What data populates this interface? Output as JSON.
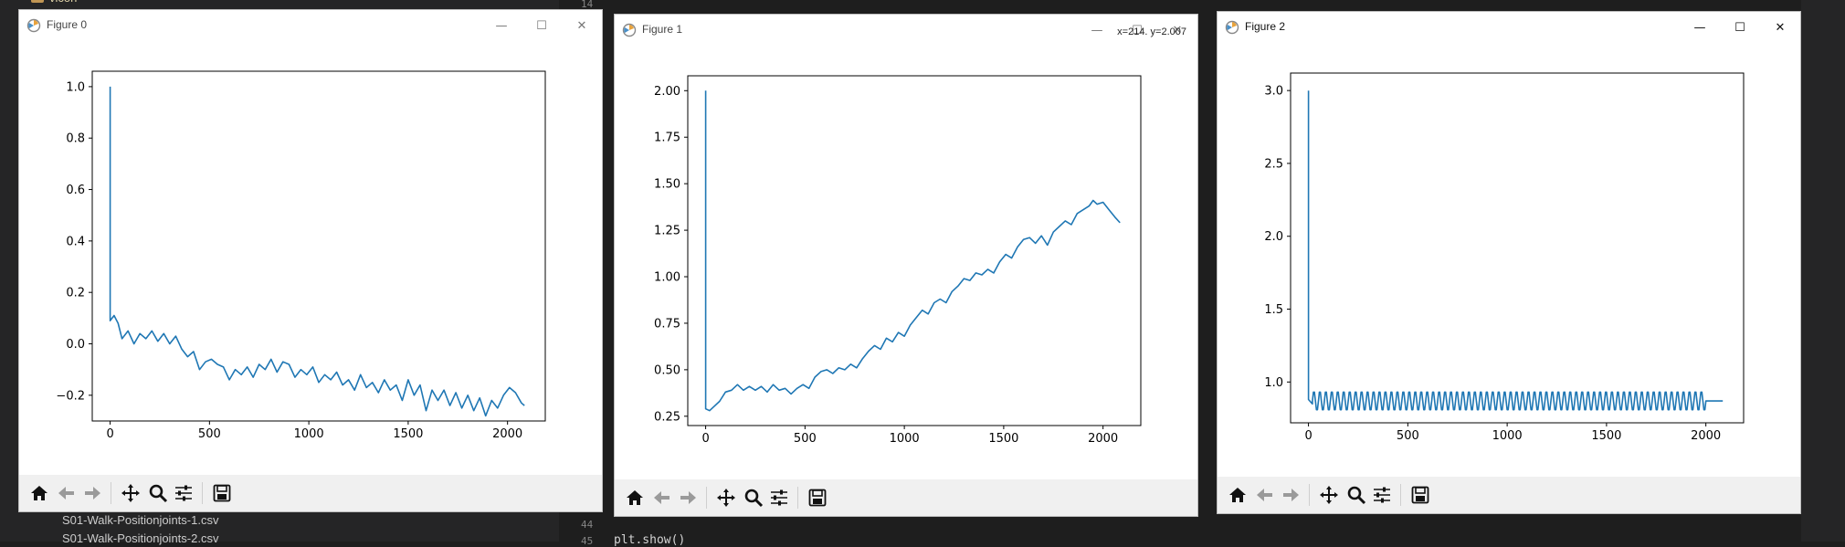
{
  "background": {
    "folder_label": "vicon",
    "line_numbers_top": "14",
    "line_numbers_bottom": [
      "44",
      "45"
    ],
    "files": [
      "S01-Walk-Positionjoints-1.csv",
      "S01-Walk-Positionjoints-2.csv"
    ],
    "code_line": "plt.show()"
  },
  "windows": [
    {
      "title": "Figure 0",
      "active": false,
      "coordinates": "",
      "chart_data": {
        "type": "line",
        "xlim": [
          -90,
          2190
        ],
        "ylim": [
          -0.3,
          1.06
        ],
        "xticks": [
          0,
          500,
          1000,
          1500,
          2000
        ],
        "yticks": [
          -0.2,
          0.0,
          0.2,
          0.4,
          0.6,
          0.8,
          1.0
        ],
        "ytick_labels": [
          "−0.2",
          "0.0",
          "0.2",
          "0.4",
          "0.6",
          "0.8",
          "1.0"
        ],
        "color": "#1f77b4",
        "series": [
          {
            "x": [
              0,
              0,
              20,
              40,
              60,
              90,
              120,
              150,
              180,
              210,
              240,
              270,
              300,
              330,
              360,
              390,
              420,
              450,
              480,
              510,
              540,
              570,
              600,
              630,
              660,
              690,
              720,
              750,
              780,
              810,
              840,
              870,
              900,
              930,
              960,
              990,
              1020,
              1050,
              1080,
              1110,
              1140,
              1170,
              1200,
              1230,
              1260,
              1290,
              1320,
              1350,
              1380,
              1410,
              1440,
              1470,
              1500,
              1530,
              1560,
              1590,
              1620,
              1650,
              1680,
              1710,
              1740,
              1770,
              1800,
              1830,
              1860,
              1890,
              1920,
              1950,
              1980,
              2010,
              2040,
              2070,
              2085
            ],
            "y": [
              1.0,
              0.09,
              0.11,
              0.08,
              0.02,
              0.05,
              0.0,
              0.04,
              0.02,
              0.05,
              0.01,
              0.04,
              0.0,
              0.03,
              -0.02,
              -0.05,
              -0.03,
              -0.1,
              -0.07,
              -0.06,
              -0.08,
              -0.09,
              -0.14,
              -0.1,
              -0.12,
              -0.09,
              -0.13,
              -0.08,
              -0.1,
              -0.06,
              -0.11,
              -0.07,
              -0.08,
              -0.13,
              -0.1,
              -0.12,
              -0.09,
              -0.15,
              -0.12,
              -0.14,
              -0.11,
              -0.16,
              -0.14,
              -0.18,
              -0.12,
              -0.17,
              -0.15,
              -0.19,
              -0.14,
              -0.18,
              -0.16,
              -0.22,
              -0.14,
              -0.2,
              -0.16,
              -0.26,
              -0.18,
              -0.22,
              -0.18,
              -0.24,
              -0.19,
              -0.25,
              -0.2,
              -0.26,
              -0.21,
              -0.28,
              -0.22,
              -0.25,
              -0.2,
              -0.17,
              -0.19,
              -0.23,
              -0.24
            ]
          }
        ]
      }
    },
    {
      "title": "Figure 1",
      "active": false,
      "coordinates": "x=214. y=2.007",
      "chart_data": {
        "type": "line",
        "xlim": [
          -90,
          2190
        ],
        "ylim": [
          0.2,
          2.08
        ],
        "xticks": [
          0,
          500,
          1000,
          1500,
          2000
        ],
        "yticks": [
          0.25,
          0.5,
          0.75,
          1.0,
          1.25,
          1.5,
          1.75,
          2.0
        ],
        "ytick_labels": [
          "0.25",
          "0.50",
          "0.75",
          "1.00",
          "1.25",
          "1.50",
          "1.75",
          "2.00"
        ],
        "color": "#1f77b4",
        "series": [
          {
            "x": [
              0,
              0,
              20,
              40,
              70,
              100,
              130,
              160,
              190,
              220,
              250,
              280,
              310,
              340,
              370,
              400,
              430,
              460,
              490,
              520,
              550,
              580,
              610,
              640,
              670,
              700,
              730,
              760,
              790,
              820,
              850,
              880,
              910,
              940,
              970,
              1000,
              1030,
              1060,
              1090,
              1120,
              1150,
              1180,
              1210,
              1240,
              1270,
              1300,
              1330,
              1360,
              1390,
              1420,
              1450,
              1480,
              1510,
              1540,
              1570,
              1600,
              1630,
              1660,
              1690,
              1720,
              1750,
              1780,
              1810,
              1840,
              1870,
              1900,
              1930,
              1950,
              1970,
              2000,
              2030,
              2060,
              2085
            ],
            "y": [
              2.0,
              0.29,
              0.28,
              0.3,
              0.33,
              0.38,
              0.39,
              0.42,
              0.39,
              0.41,
              0.39,
              0.41,
              0.38,
              0.42,
              0.39,
              0.4,
              0.37,
              0.4,
              0.42,
              0.4,
              0.46,
              0.49,
              0.5,
              0.48,
              0.51,
              0.5,
              0.53,
              0.51,
              0.56,
              0.6,
              0.63,
              0.61,
              0.67,
              0.65,
              0.7,
              0.68,
              0.74,
              0.78,
              0.82,
              0.8,
              0.86,
              0.88,
              0.86,
              0.92,
              0.95,
              0.99,
              0.98,
              1.02,
              1.01,
              1.04,
              1.02,
              1.08,
              1.12,
              1.1,
              1.16,
              1.2,
              1.21,
              1.18,
              1.22,
              1.17,
              1.24,
              1.27,
              1.3,
              1.28,
              1.34,
              1.36,
              1.38,
              1.41,
              1.39,
              1.4,
              1.36,
              1.32,
              1.29
            ]
          }
        ]
      }
    },
    {
      "title": "Figure 2",
      "active": true,
      "coordinates": "",
      "chart_data": {
        "type": "line",
        "xlim": [
          -90,
          2190
        ],
        "ylim": [
          0.72,
          3.12
        ],
        "xticks": [
          0,
          500,
          1000,
          1500,
          2000
        ],
        "yticks": [
          1.0,
          1.5,
          2.0,
          2.5,
          3.0
        ],
        "ytick_labels": [
          "1.0",
          "1.5",
          "2.0",
          "2.5",
          "3.0"
        ],
        "color": "#1f77b4",
        "oscillation": {
          "start": 20,
          "end": 2000,
          "period": 30,
          "center": 0.87,
          "amplitude": 0.07,
          "tail_value": 0.87,
          "tail_end": 2085
        },
        "series": [
          {
            "x": [
              0,
              0,
              20
            ],
            "y": [
              3.0,
              0.88,
              0.85
            ]
          }
        ]
      }
    }
  ]
}
